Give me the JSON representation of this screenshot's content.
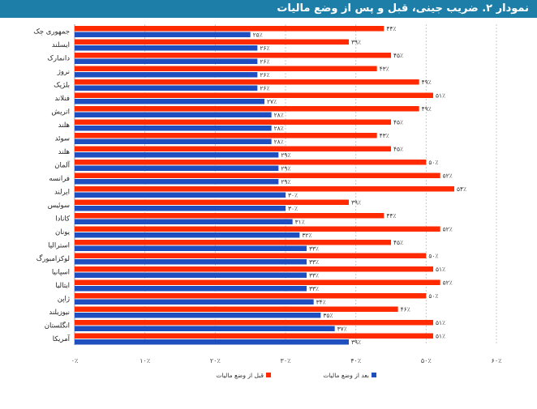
{
  "title": "نمودار ۲. ضریب جینی، قبل و پس از وضع مالیات",
  "chart_data": {
    "type": "bar",
    "orientation": "horizontal",
    "title": "نمودار ۲. ضریب جینی، قبل و پس از وضع مالیات",
    "categories": [
      "جمهوری چک",
      "ایسلند",
      "دانمارک",
      "نروژ",
      "بلژیک",
      "فنلاند",
      "اتریش",
      "هلند",
      "سوئد",
      "هلند",
      "آلمان",
      "فرانسه",
      "ایرلند",
      "سوئیس",
      "کانادا",
      "یونان",
      "استرالیا",
      "لوکزامبورگ",
      "اسپانیا",
      "ایتالیا",
      "ژاپن",
      "نیوزیلند",
      "انگلستان",
      "آمریکا"
    ],
    "series": [
      {
        "name": "قبل از وضع مالیات",
        "color": "#ff2a00",
        "values": [
          44,
          39,
          45,
          43,
          49,
          51,
          49,
          45,
          43,
          45,
          50,
          52,
          54,
          39,
          44,
          52,
          45,
          50,
          51,
          52,
          50,
          46,
          51,
          51
        ],
        "labels": [
          "۴۴٪",
          "۳۹٪",
          "۴۵٪",
          "۴۳٪",
          "۴۹٪",
          "۵۱٪",
          "۴۹٪",
          "۴۵٪",
          "۴۳٪",
          "۴۵٪",
          "۵۰٪",
          "۵۲٪",
          "۵۴٪",
          "۳۹٪",
          "۴۴٪",
          "۵۲٪",
          "۴۵٪",
          "۵۰٪",
          "۵۱٪",
          "۵۲٪",
          "۵۰٪",
          "۴۶٪",
          "۵۱٪",
          "۵۱٪"
        ]
      },
      {
        "name": "بعد از وضع مالیات",
        "color": "#1f4fbf",
        "values": [
          25,
          26,
          26,
          26,
          26,
          27,
          28,
          28,
          28,
          29,
          29,
          29,
          30,
          30,
          31,
          32,
          33,
          33,
          33,
          33,
          34,
          35,
          37,
          39
        ],
        "labels": [
          "۲۵٪",
          "۲۶٪",
          "۲۶٪",
          "۲۶٪",
          "۲۶٪",
          "۲۷٪",
          "۲۸٪",
          "۲۸٪",
          "۲۸٪",
          "۲۹٪",
          "۲۹٪",
          "۲۹٪",
          "۳۰٪",
          "۳۰٪",
          "۳۱٪",
          "۳۲٪",
          "۳۳٪",
          "۳۳٪",
          "۳۳٪",
          "۳۳٪",
          "۳۴٪",
          "۳۵٪",
          "۳۷٪",
          "۳۹٪"
        ]
      }
    ],
    "xlim": [
      0,
      60
    ],
    "xticks": [
      0,
      10,
      20,
      30,
      40,
      50,
      60
    ],
    "xtick_labels": [
      "۰٪",
      "۱۰٪",
      "۲۰٪",
      "۳۰٪",
      "۴۰٪",
      "۵۰٪",
      "۶۰٪"
    ],
    "legend": [
      "قبل از وضع مالیات",
      "بعد از وضع مالیات"
    ],
    "legend_position": "bottom",
    "grid": true
  }
}
